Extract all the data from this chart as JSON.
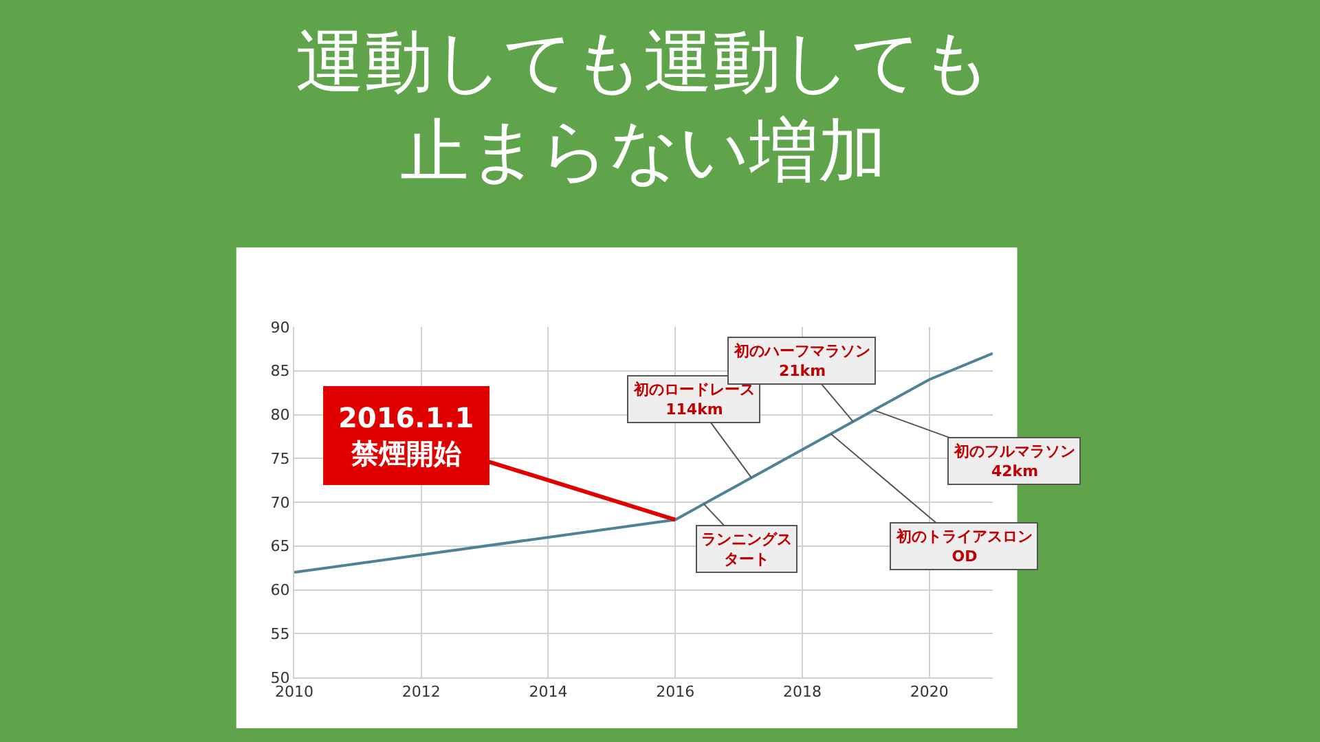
{
  "chart_data": {
    "type": "line",
    "title": "運動しても運動しても止まらない増加",
    "x": [
      2010,
      2016,
      2017,
      2018,
      2019,
      2020,
      2021
    ],
    "series": [
      {
        "color": "#4f8296",
        "values": [
          62,
          68,
          72,
          76,
          80,
          84,
          87
        ]
      }
    ],
    "xlim": [
      2010,
      2021
    ],
    "xticks": [
      2010,
      2012,
      2014,
      2016,
      2018,
      2020
    ],
    "ylim": [
      50,
      90
    ],
    "yticks": [
      50,
      55,
      60,
      65,
      70,
      75,
      80,
      85,
      90
    ],
    "grid": true,
    "marker": "none",
    "line_style": "solid",
    "annotations": [
      {
        "text": "2016.1.1\n禁煙開始",
        "x": 2016,
        "y": 68
      },
      {
        "text": "ランニングスタート",
        "x": 2016.45,
        "y": 69.8
      },
      {
        "text": "初のロードレース\n114km",
        "x": 2017.2,
        "y": 72.8
      },
      {
        "text": "初のハーフマラソン\n21km",
        "x": 2018.8,
        "y": 79.2
      },
      {
        "text": "初のフルマラソン\n42km",
        "x": 2019.13,
        "y": 80.5
      },
      {
        "text": "初のトライアスロン\nOD",
        "x": 2018.45,
        "y": 77.8
      }
    ]
  }
}
